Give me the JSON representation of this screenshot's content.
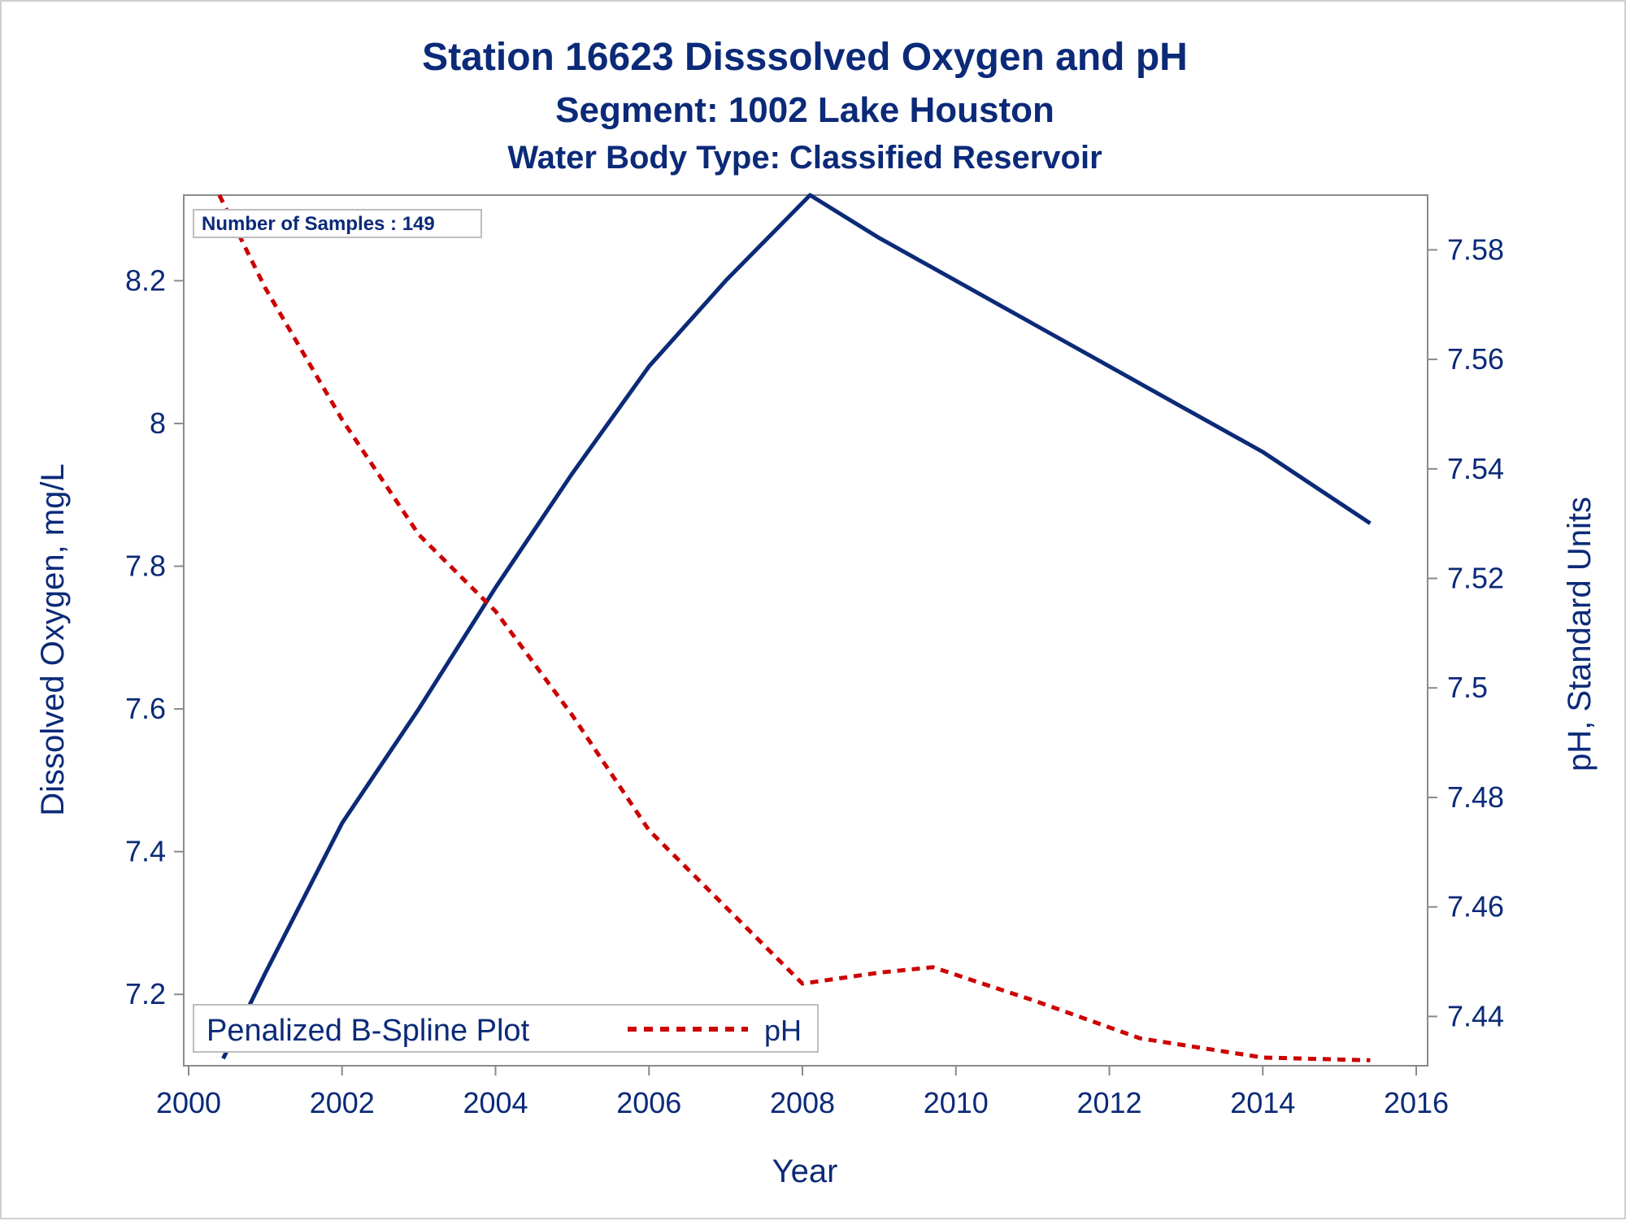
{
  "chart_data": {
    "type": "line",
    "title": "Station 16623   Disssolved Oxygen and pH",
    "subtitle": "Segment: 1002  Lake Houston",
    "subtitle2": "Water Body Type: Classified Reservoir",
    "xlabel": "Year",
    "ylabel_left": "Dissolved Oxygen, mg/L",
    "ylabel_right": "pH, Standard Units",
    "xlim": [
      2000,
      2016
    ],
    "ylim_left": [
      7.1,
      8.32
    ],
    "ylim_right": [
      7.431,
      7.59
    ],
    "x_ticks": [
      "2000",
      "2002",
      "2004",
      "2006",
      "2008",
      "2010",
      "2012",
      "2014",
      "2016"
    ],
    "y_left_ticks": [
      "7.2",
      "7.4",
      "7.6",
      "7.8",
      "8",
      "8.2"
    ],
    "y_right_ticks": [
      "7.44",
      "7.46",
      "7.48",
      "7.5",
      "7.52",
      "7.54",
      "7.56",
      "7.58"
    ],
    "inset_note": "Number of Samples : 149",
    "legend": {
      "label": "Penalized B-Spline Plot",
      "entry": "pH",
      "placement": "bottom-left"
    },
    "series": [
      {
        "name": "Dissolved Oxygen",
        "axis": "left",
        "color": "#0b2a78",
        "style": "solid",
        "x": [
          2000.45,
          2001.0,
          2002.0,
          2003.0,
          2004.0,
          2005.0,
          2006.0,
          2007.0,
          2008.1,
          2009.0,
          2010.0,
          2011.0,
          2012.0,
          2013.0,
          2014.0,
          2015.4
        ],
        "y": [
          7.11,
          7.23,
          7.44,
          7.6,
          7.77,
          7.93,
          8.08,
          8.2,
          8.32,
          8.26,
          8.2,
          8.14,
          8.08,
          8.02,
          7.96,
          7.86
        ]
      },
      {
        "name": "pH",
        "axis": "right",
        "color": "#cc0000",
        "style": "dashed",
        "x": [
          2000.4,
          2001.0,
          2002.0,
          2003.0,
          2004.0,
          2005.0,
          2006.0,
          2007.0,
          2008.0,
          2009.0,
          2009.7,
          2011.0,
          2012.4,
          2014.0,
          2015.4
        ],
        "y": [
          7.59,
          7.573,
          7.549,
          7.528,
          7.514,
          7.495,
          7.474,
          7.46,
          7.446,
          7.448,
          7.449,
          7.443,
          7.436,
          7.4325,
          7.432
        ]
      }
    ]
  }
}
